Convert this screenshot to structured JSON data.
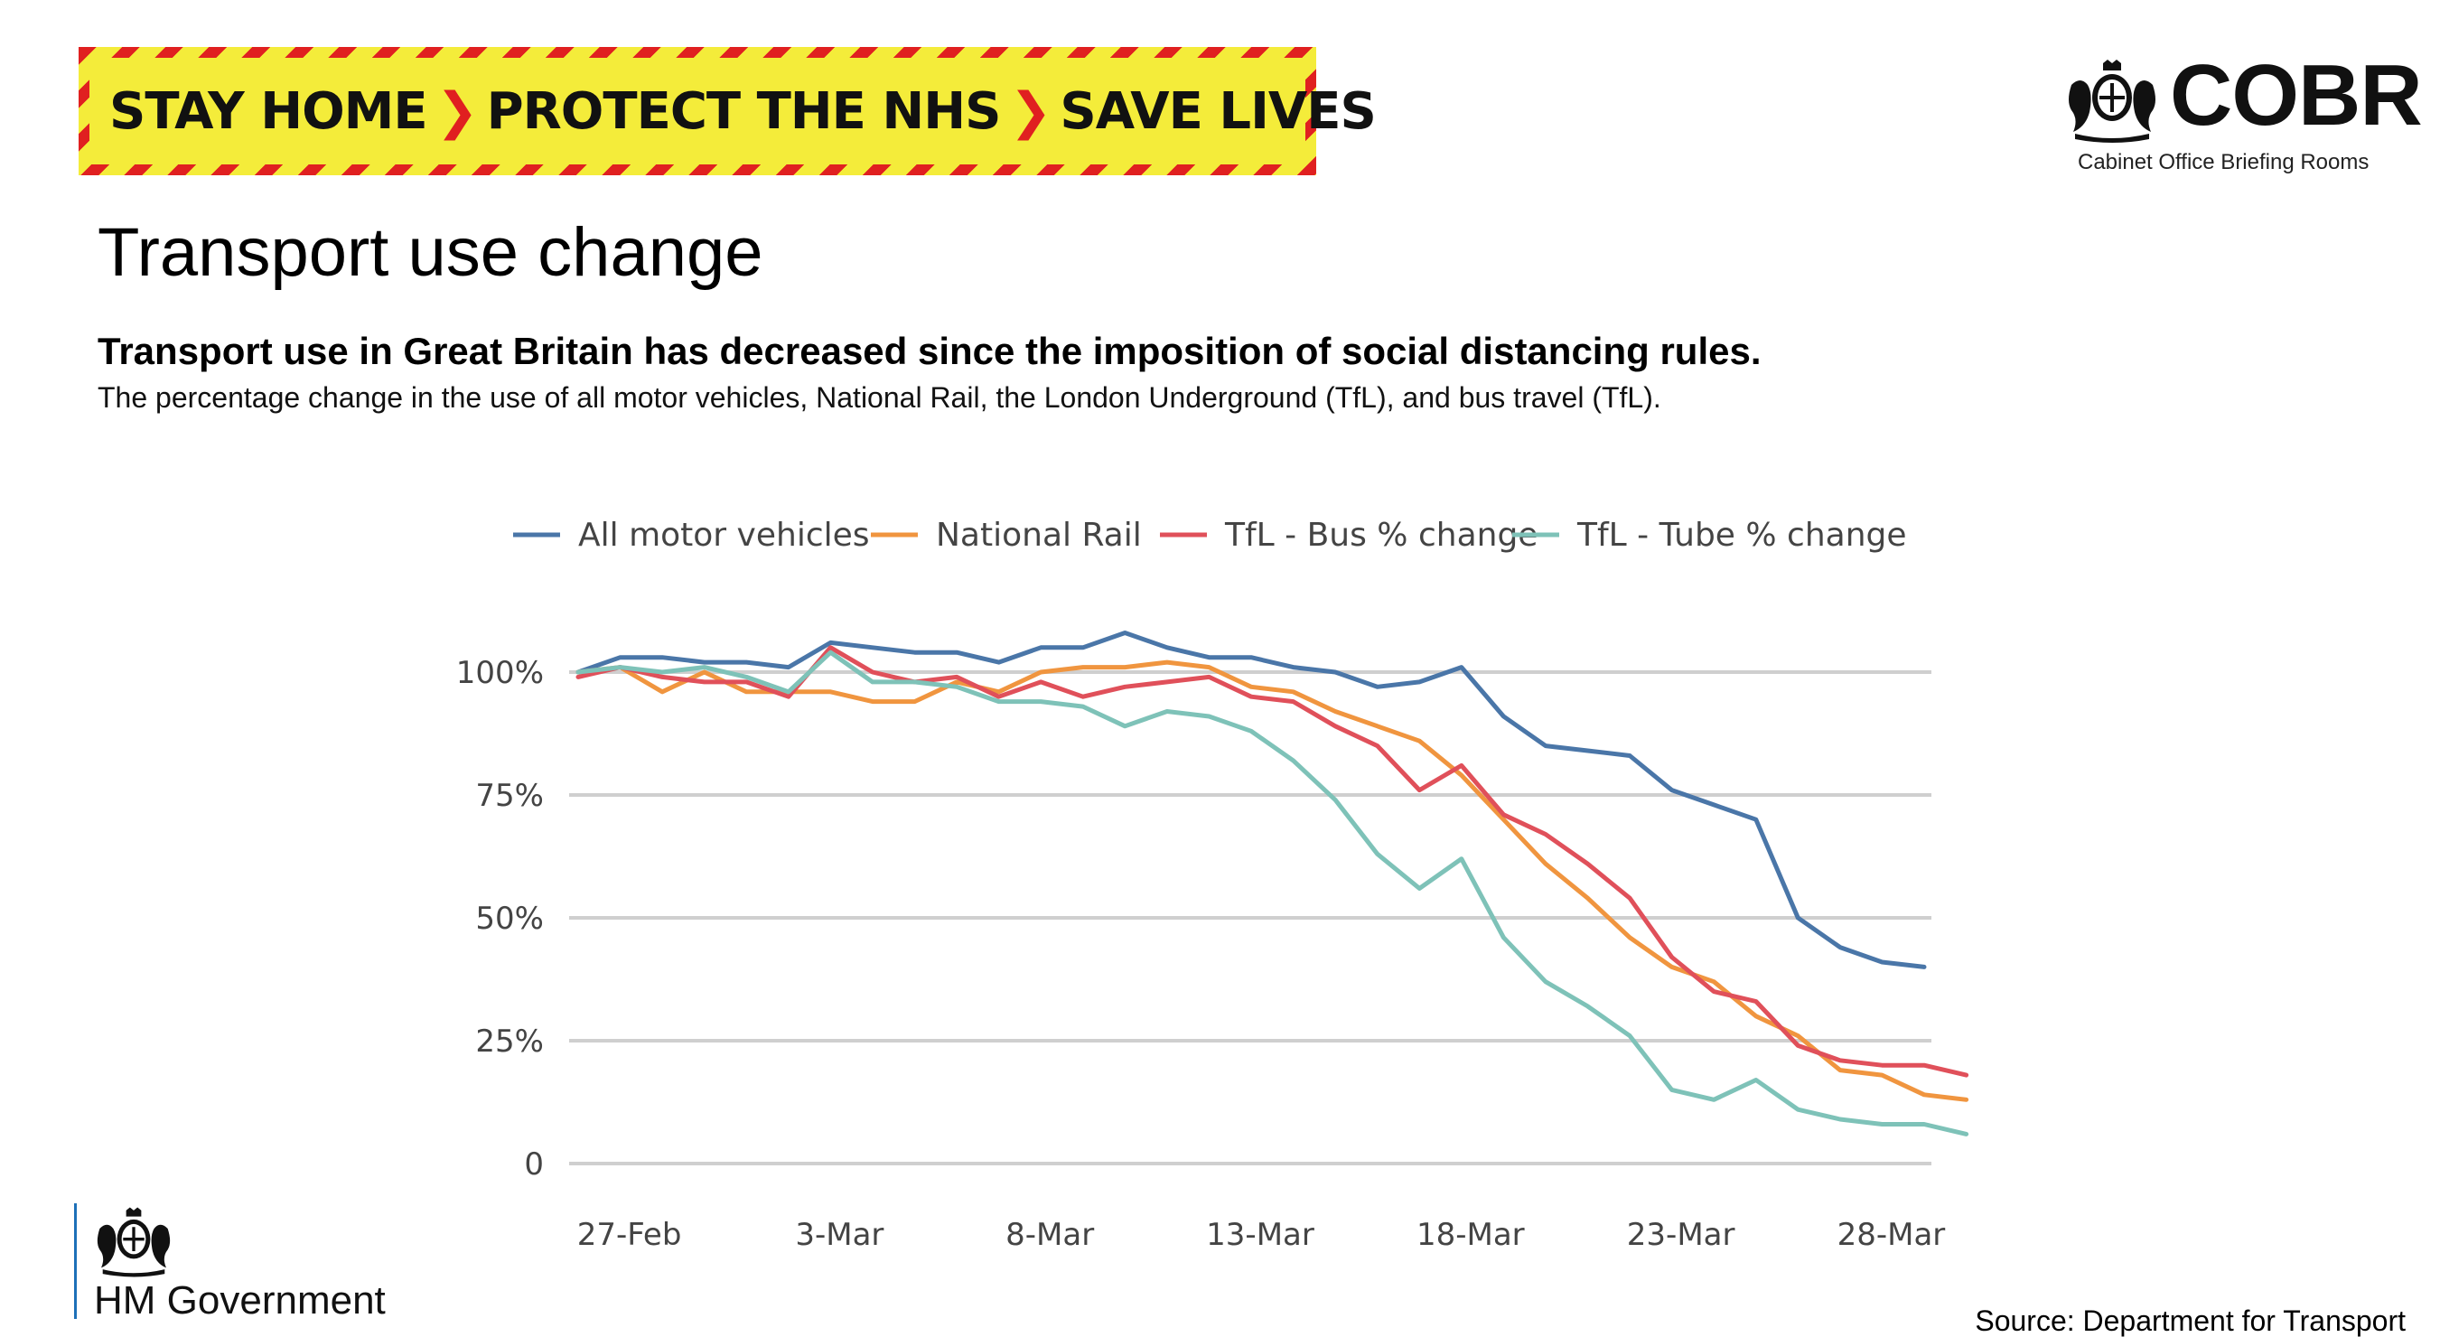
{
  "banner": {
    "part1": "STAY HOME",
    "part2": "PROTECT THE NHS",
    "part3": "SAVE LIVES"
  },
  "brand": {
    "cobr_title": "COBR",
    "cobr_subtitle": "Cabinet Office Briefing Rooms",
    "government": "HM Government"
  },
  "page": {
    "title": "Transport use change",
    "headline": "Transport use in Great Britain has decreased since the imposition of social distancing rules.",
    "subline": "The percentage change in the use of all motor vehicles, National Rail, the London Underground (TfL), and bus travel (TfL).",
    "source": "Source: Department for Transport"
  },
  "colors": {
    "banner_yellow": "#f4ec3a",
    "banner_red": "#e02020",
    "gov_blue": "#1d70b8"
  },
  "chart_data": {
    "type": "line",
    "x_ticks": [
      "27-Feb",
      "3-Mar",
      "8-Mar",
      "13-Mar",
      "18-Mar",
      "23-Mar",
      "28-Mar"
    ],
    "x_range": [
      "2020-02-26",
      "2020-03-29"
    ],
    "y_ticks": [
      "100%",
      "75%",
      "50%",
      "25%",
      "0"
    ],
    "ylim": [
      0,
      100
    ],
    "grid": "horizontal",
    "legend": "top",
    "series": [
      {
        "name": "All motor vehicles",
        "color": "#4a76a8",
        "x": [
          "2020-02-26",
          "2020-02-27",
          "2020-02-28",
          "2020-02-29",
          "2020-03-01",
          "2020-03-02",
          "2020-03-03",
          "2020-03-04",
          "2020-03-05",
          "2020-03-06",
          "2020-03-07",
          "2020-03-08",
          "2020-03-09",
          "2020-03-10",
          "2020-03-11",
          "2020-03-12",
          "2020-03-13",
          "2020-03-14",
          "2020-03-15",
          "2020-03-16",
          "2020-03-17",
          "2020-03-18",
          "2020-03-19",
          "2020-03-20",
          "2020-03-21",
          "2020-03-22",
          "2020-03-23",
          "2020-03-24",
          "2020-03-25",
          "2020-03-26",
          "2020-03-27",
          "2020-03-28",
          "2020-03-29"
        ],
        "values": [
          100,
          103,
          103,
          102,
          102,
          101,
          106,
          105,
          104,
          104,
          102,
          105,
          105,
          108,
          105,
          103,
          103,
          101,
          100,
          97,
          98,
          101,
          91,
          85,
          84,
          83,
          76,
          73,
          70,
          50,
          44,
          41,
          40
        ]
      },
      {
        "name": "National Rail",
        "color": "#f0953f",
        "x": [
          "2020-02-26",
          "2020-02-27",
          "2020-02-28",
          "2020-02-29",
          "2020-03-01",
          "2020-03-02",
          "2020-03-03",
          "2020-03-04",
          "2020-03-05",
          "2020-03-06",
          "2020-03-07",
          "2020-03-08",
          "2020-03-09",
          "2020-03-10",
          "2020-03-11",
          "2020-03-12",
          "2020-03-13",
          "2020-03-14",
          "2020-03-15",
          "2020-03-16",
          "2020-03-17",
          "2020-03-18",
          "2020-03-19",
          "2020-03-20",
          "2020-03-21",
          "2020-03-22",
          "2020-03-23",
          "2020-03-24",
          "2020-03-25",
          "2020-03-26",
          "2020-03-27",
          "2020-03-28",
          "2020-03-29",
          "2020-03-30"
        ],
        "values": [
          100,
          101,
          96,
          100,
          96,
          96,
          96,
          94,
          94,
          98,
          96,
          100,
          101,
          101,
          102,
          101,
          97,
          96,
          92,
          89,
          86,
          79,
          70,
          61,
          54,
          46,
          40,
          37,
          30,
          26,
          19,
          18,
          14,
          13
        ]
      },
      {
        "name": "TfL - Bus % change",
        "color": "#e0505a",
        "x": [
          "2020-02-26",
          "2020-02-27",
          "2020-02-28",
          "2020-02-29",
          "2020-03-01",
          "2020-03-02",
          "2020-03-03",
          "2020-03-04",
          "2020-03-05",
          "2020-03-06",
          "2020-03-07",
          "2020-03-08",
          "2020-03-09",
          "2020-03-10",
          "2020-03-11",
          "2020-03-12",
          "2020-03-13",
          "2020-03-14",
          "2020-03-15",
          "2020-03-16",
          "2020-03-17",
          "2020-03-18",
          "2020-03-19",
          "2020-03-20",
          "2020-03-21",
          "2020-03-22",
          "2020-03-23",
          "2020-03-24",
          "2020-03-25",
          "2020-03-26",
          "2020-03-27",
          "2020-03-28",
          "2020-03-29",
          "2020-03-30"
        ],
        "values": [
          99,
          101,
          99,
          98,
          98,
          95,
          105,
          100,
          98,
          99,
          95,
          98,
          95,
          97,
          98,
          99,
          95,
          94,
          89,
          85,
          76,
          81,
          71,
          67,
          61,
          54,
          42,
          35,
          33,
          24,
          21,
          20,
          20,
          18
        ]
      },
      {
        "name": "TfL - Tube % change",
        "color": "#7ec2b8",
        "x": [
          "2020-02-26",
          "2020-02-27",
          "2020-02-28",
          "2020-02-29",
          "2020-03-01",
          "2020-03-02",
          "2020-03-03",
          "2020-03-04",
          "2020-03-05",
          "2020-03-06",
          "2020-03-07",
          "2020-03-08",
          "2020-03-09",
          "2020-03-10",
          "2020-03-11",
          "2020-03-12",
          "2020-03-13",
          "2020-03-14",
          "2020-03-15",
          "2020-03-16",
          "2020-03-17",
          "2020-03-18",
          "2020-03-19",
          "2020-03-20",
          "2020-03-21",
          "2020-03-22",
          "2020-03-23",
          "2020-03-24",
          "2020-03-25",
          "2020-03-26",
          "2020-03-27",
          "2020-03-28",
          "2020-03-29",
          "2020-03-30"
        ],
        "values": [
          100,
          101,
          100,
          101,
          99,
          96,
          104,
          98,
          98,
          97,
          94,
          94,
          93,
          89,
          92,
          91,
          88,
          82,
          74,
          63,
          56,
          62,
          46,
          37,
          32,
          26,
          15,
          13,
          17,
          11,
          9,
          8,
          8,
          6
        ]
      }
    ]
  }
}
